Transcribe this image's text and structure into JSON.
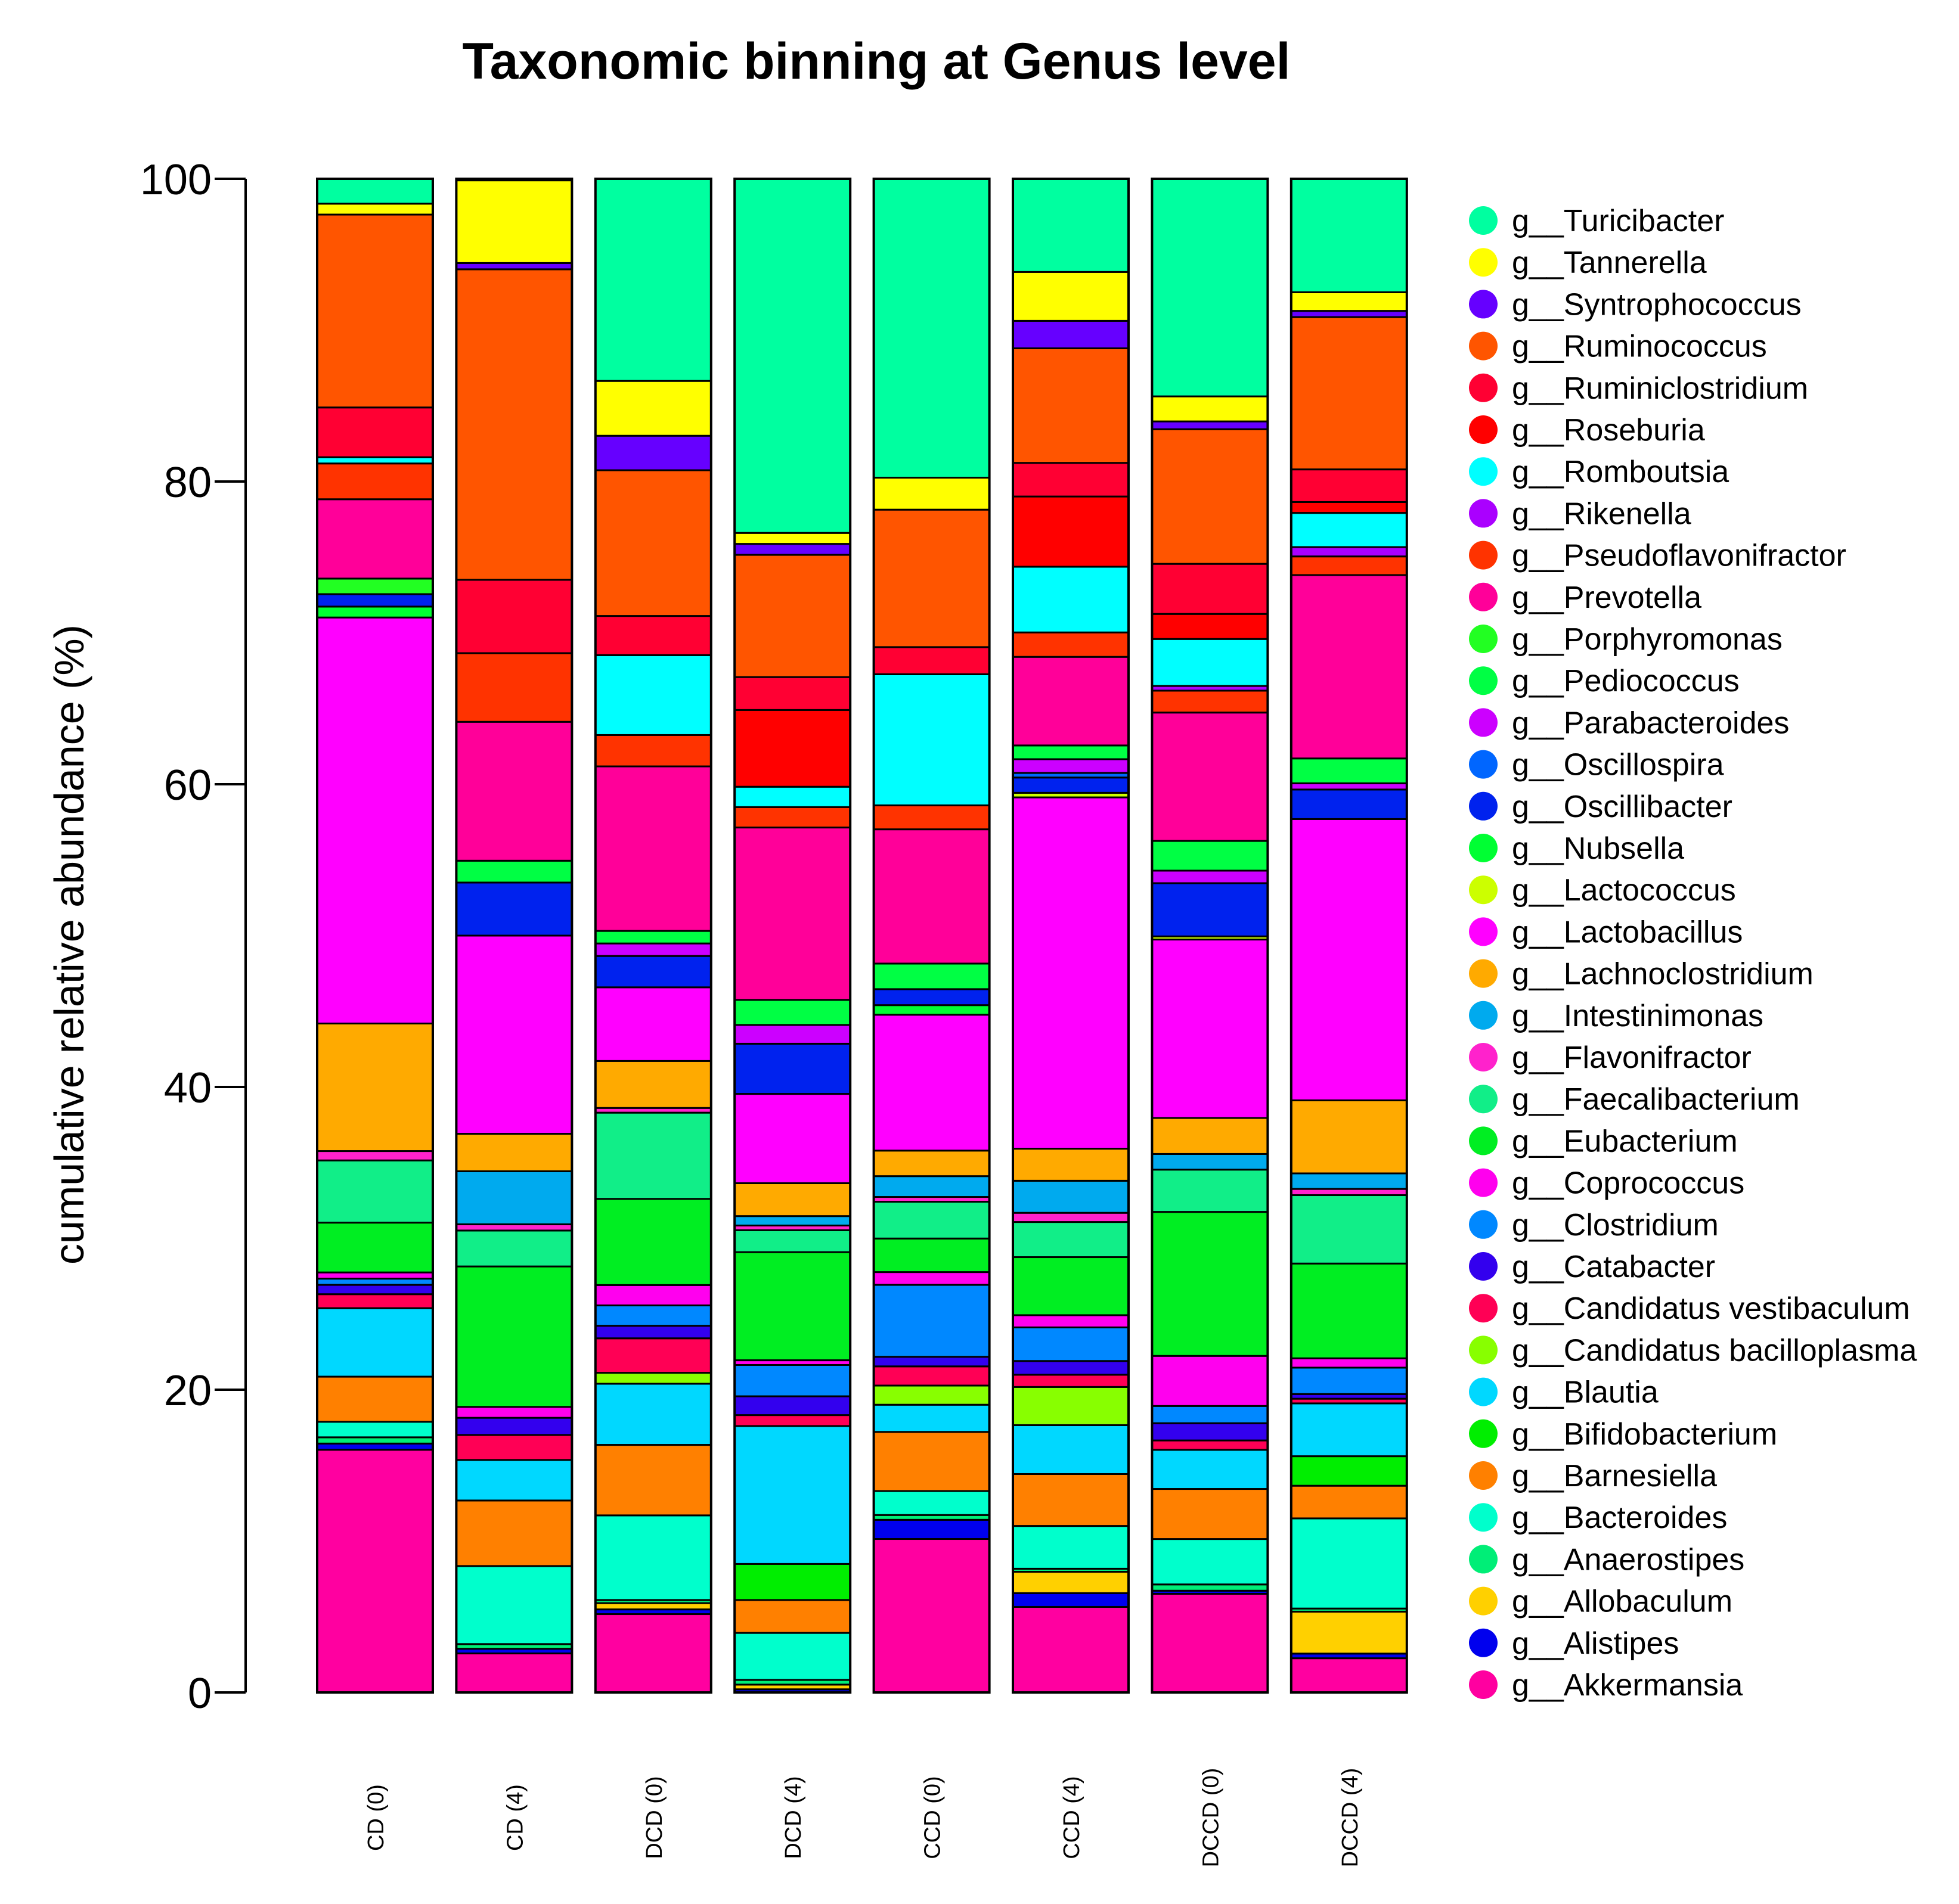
{
  "chart_data": {
    "type": "bar",
    "stacked": true,
    "title": "Taxonomic binning at Genus level",
    "xlabel": "",
    "ylabel": "cumulative relative abundance (%)",
    "ylim": [
      0,
      100
    ],
    "yticks": [
      "0",
      "20",
      "40",
      "60",
      "80",
      "100"
    ],
    "legend_position": "right",
    "categories": [
      "CD (0)",
      "CD (4)",
      "DCD (0)",
      "DCD (4)",
      "CCD (0)",
      "CCD (4)",
      "DCCD (0)",
      "DCCD (4)"
    ],
    "series": [
      {
        "name": "g__Akkermansia",
        "color": "#ff00a0",
        "values": [
          15.6,
          2.5,
          5.0,
          0.0,
          9.6,
          5.6,
          6.3,
          2.2
        ]
      },
      {
        "name": "g__Alistipes",
        "color": "#0000ee",
        "values": [
          0.4,
          0.3,
          0.3,
          0.2,
          1.2,
          0.9,
          0.2,
          0.3
        ]
      },
      {
        "name": "g__Allobaculum",
        "color": "#ffd000",
        "values": [
          0.0,
          0.0,
          0.4,
          0.3,
          0.0,
          1.4,
          0.0,
          2.7
        ]
      },
      {
        "name": "g__Anaerostipes",
        "color": "#00ee77",
        "values": [
          0.4,
          0.3,
          0.2,
          0.3,
          0.3,
          0.2,
          0.4,
          0.2
        ]
      },
      {
        "name": "g__Bacteroides",
        "color": "#00ffcc",
        "values": [
          1.0,
          5.0,
          5.4,
          3.0,
          1.5,
          2.8,
          2.9,
          5.8
        ]
      },
      {
        "name": "g__Barnesiella",
        "color": "#ff8000",
        "values": [
          2.9,
          4.2,
          4.5,
          2.1,
          3.7,
          3.4,
          3.2,
          2.1
        ]
      },
      {
        "name": "g__Bifidobacterium",
        "color": "#00ee00",
        "values": [
          0.0,
          0.0,
          0.0,
          2.3,
          0.0,
          0.0,
          0.0,
          1.9
        ]
      },
      {
        "name": "g__Blautia",
        "color": "#00d8ff",
        "values": [
          4.4,
          2.6,
          3.9,
          8.8,
          1.7,
          3.2,
          2.5,
          3.4
        ]
      },
      {
        "name": "g__Candidatus bacilloplasma",
        "color": "#88ff00",
        "values": [
          0.0,
          0.0,
          0.7,
          0.0,
          1.2,
          2.5,
          0.0,
          0.0
        ]
      },
      {
        "name": "g__Candidatus vestibaculum",
        "color": "#ff0055",
        "values": [
          0.9,
          1.6,
          2.2,
          0.7,
          1.2,
          0.8,
          0.6,
          0.3
        ]
      },
      {
        "name": "g__Catabacter",
        "color": "#3300ee",
        "values": [
          0.6,
          1.1,
          0.8,
          1.2,
          0.6,
          0.9,
          1.1,
          0.3
        ]
      },
      {
        "name": "g__Clostridium",
        "color": "#0088ff",
        "values": [
          0.4,
          0.0,
          1.3,
          2.0,
          4.5,
          2.2,
          1.1,
          1.7
        ]
      },
      {
        "name": "g__Coprococcus",
        "color": "#ff00ee",
        "values": [
          0.4,
          0.7,
          1.3,
          0.3,
          0.8,
          0.8,
          3.2,
          0.6
        ]
      },
      {
        "name": "g__Eubacterium",
        "color": "#00ee22",
        "values": [
          3.2,
          9.0,
          5.5,
          6.9,
          2.1,
          3.8,
          9.2,
          6.1
        ]
      },
      {
        "name": "g__Faecalibacterium",
        "color": "#11ee88",
        "values": [
          4.0,
          2.3,
          5.5,
          1.4,
          2.3,
          2.3,
          2.7,
          4.4
        ]
      },
      {
        "name": "g__Flavonifractor",
        "color": "#ff22cc",
        "values": [
          0.6,
          0.4,
          0.3,
          0.3,
          0.3,
          0.6,
          0.0,
          0.4
        ]
      },
      {
        "name": "g__Intestinimonas",
        "color": "#00aaee",
        "values": [
          0.0,
          3.4,
          0.0,
          0.6,
          1.3,
          2.1,
          1.0,
          1.0
        ]
      },
      {
        "name": "g__Lachnoclostridium",
        "color": "#ffaa00",
        "values": [
          8.2,
          2.4,
          3.0,
          2.1,
          1.6,
          2.1,
          2.3,
          4.7
        ]
      },
      {
        "name": "g__Lactobacillus",
        "color": "#ff00ff",
        "values": [
          26.1,
          12.7,
          4.7,
          5.7,
          8.5,
          23.0,
          11.4,
          18.1
        ]
      },
      {
        "name": "g__Lactococcus",
        "color": "#ccff00",
        "values": [
          0.0,
          0.0,
          0.0,
          0.0,
          0.0,
          0.3,
          0.2,
          0.0
        ]
      },
      {
        "name": "g__Nubsella",
        "color": "#00ff33",
        "values": [
          0.7,
          0.0,
          0.0,
          0.0,
          0.6,
          0.0,
          0.0,
          0.0
        ]
      },
      {
        "name": "g__Oscillibacter",
        "color": "#0022ee",
        "values": [
          0.8,
          3.4,
          2.0,
          3.2,
          1.0,
          1.0,
          3.4,
          1.9
        ]
      },
      {
        "name": "g__Oscillospira",
        "color": "#0066ff",
        "values": [
          0.0,
          0.0,
          0.0,
          0.0,
          0.0,
          0.3,
          0.0,
          0.0
        ]
      },
      {
        "name": "g__Parabacteroides",
        "color": "#cc00ff",
        "values": [
          0.0,
          0.0,
          0.8,
          1.2,
          0.0,
          0.9,
          0.8,
          0.4
        ]
      },
      {
        "name": "g__Pediococcus",
        "color": "#00ff44",
        "values": [
          0.0,
          1.4,
          0.8,
          1.6,
          1.6,
          0.9,
          1.9,
          1.6
        ]
      },
      {
        "name": "g__Porphyromonas",
        "color": "#22ff22",
        "values": [
          1.0,
          0.0,
          0.0,
          0.0,
          0.0,
          0.0,
          0.0,
          0.0
        ]
      },
      {
        "name": "g__Prevotella",
        "color": "#ff0099",
        "values": [
          5.1,
          8.9,
          10.5,
          11.0,
          8.4,
          5.8,
          8.2,
          11.8
        ]
      },
      {
        "name": "g__Pseudoflavonifractor",
        "color": "#ff3300",
        "values": [
          2.3,
          4.4,
          2.0,
          1.3,
          1.5,
          1.6,
          1.4,
          1.2
        ]
      },
      {
        "name": "g__Rikenella",
        "color": "#aa00ff",
        "values": [
          0.0,
          0.0,
          0.0,
          0.0,
          0.0,
          0.0,
          0.3,
          0.6
        ]
      },
      {
        "name": "g__Romboutsia",
        "color": "#00ffff",
        "values": [
          0.4,
          0.0,
          5.1,
          1.3,
          8.2,
          4.3,
          3.0,
          2.2
        ]
      },
      {
        "name": "g__Roseburia",
        "color": "#ff0000",
        "values": [
          0.0,
          0.0,
          0.0,
          4.9,
          0.0,
          4.6,
          1.6,
          0.7
        ]
      },
      {
        "name": "g__Ruminiclostridium",
        "color": "#ff0033",
        "values": [
          3.2,
          4.7,
          2.5,
          2.1,
          1.7,
          2.2,
          3.2,
          2.1
        ]
      },
      {
        "name": "g__Ruminococcus",
        "color": "#ff5500",
        "values": [
          12.4,
          19.9,
          9.3,
          7.8,
          8.6,
          7.5,
          8.6,
          9.8
        ]
      },
      {
        "name": "g__Syntrophococcus",
        "color": "#6600ff",
        "values": [
          0.0,
          0.4,
          2.2,
          0.7,
          0.0,
          1.8,
          0.5,
          0.4
        ]
      },
      {
        "name": "g__Tannerella",
        "color": "#ffff00",
        "values": [
          0.7,
          5.3,
          3.5,
          0.7,
          2.0,
          3.2,
          1.6,
          1.2
        ]
      },
      {
        "name": "g__Turicibacter",
        "color": "#00ffa0",
        "values": [
          1.6,
          0.1,
          12.9,
          22.6,
          18.7,
          6.1,
          13.9,
          7.3
        ]
      }
    ]
  }
}
